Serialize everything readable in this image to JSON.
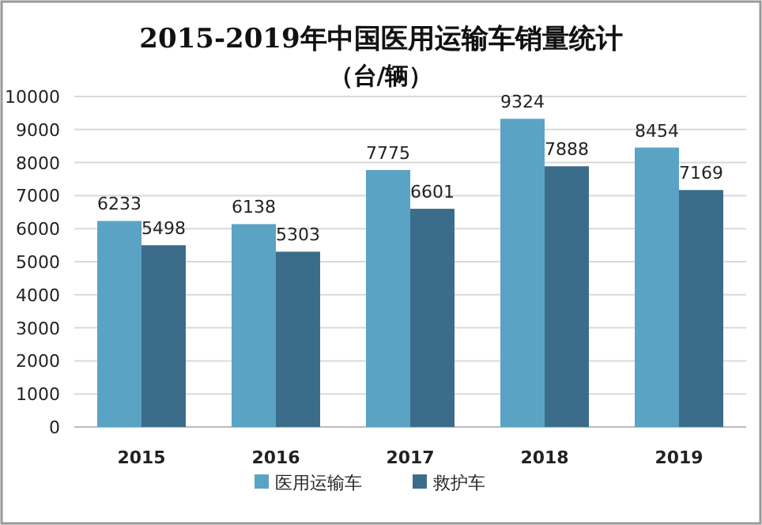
{
  "chart_data": {
    "type": "bar",
    "title": "2015-2019年中国医用运输车销量统计",
    "subtitle": "（台/辆）",
    "categories": [
      "2015",
      "2016",
      "2017",
      "2018",
      "2019"
    ],
    "series": [
      {
        "name": "医用运输车",
        "color": "#5ba3c4",
        "values": [
          6233,
          6138,
          7775,
          9324,
          8454
        ]
      },
      {
        "name": "救护车",
        "color": "#3b6d8a",
        "values": [
          5498,
          5303,
          6601,
          7888,
          7169
        ]
      }
    ],
    "ylim": [
      0,
      10000
    ],
    "yticks": [
      0,
      1000,
      2000,
      3000,
      4000,
      5000,
      6000,
      7000,
      8000,
      9000,
      10000
    ],
    "grid": "y",
    "legend": "bottom",
    "data_labels": true
  }
}
